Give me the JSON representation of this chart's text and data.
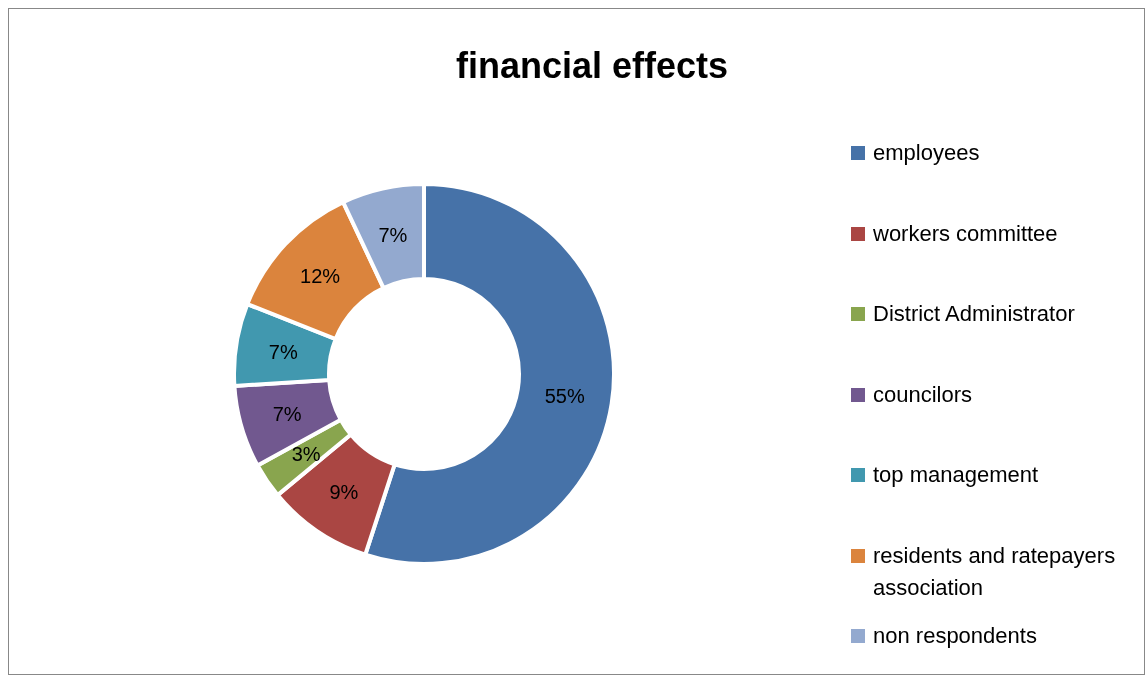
{
  "chart_data": {
    "type": "donut",
    "title": "financial effects",
    "categories": [
      "employees",
      "workers committee",
      "District Administrator",
      "councilors",
      "top management",
      "residents and ratepayers association",
      "non respondents"
    ],
    "values": [
      55,
      9,
      3,
      7,
      7,
      12,
      7
    ],
    "colors": [
      "#4672a8",
      "#aa4643",
      "#89a54e",
      "#71588f",
      "#4198af",
      "#db843d",
      "#93a9cf"
    ],
    "value_labels": [
      "55%",
      "9%",
      "3%",
      "7%",
      "7%",
      "12%",
      "7%"
    ],
    "legend": "right"
  }
}
